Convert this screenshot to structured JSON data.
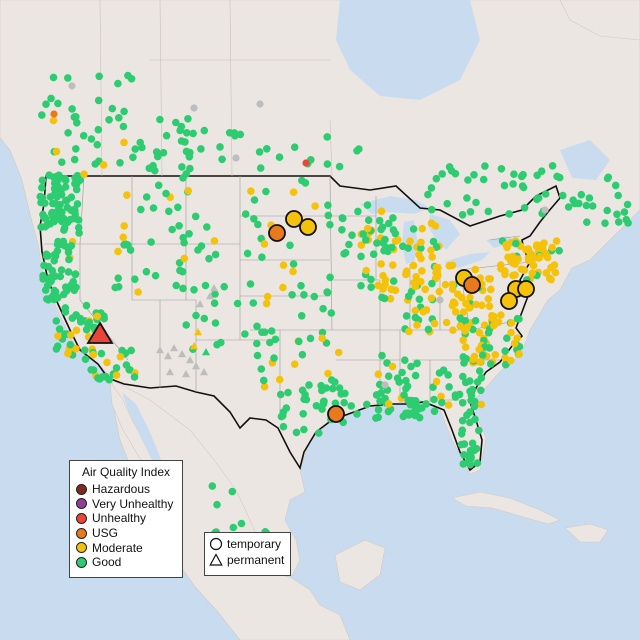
{
  "legend": {
    "title": "Air Quality Index",
    "items": [
      {
        "label": "Hazardous",
        "color": "#7e2a1f"
      },
      {
        "label": "Very Unhealthy",
        "color": "#8f3f97"
      },
      {
        "label": "Unhealthy",
        "color": "#e8463a"
      },
      {
        "label": "USG",
        "color": "#e8791c"
      },
      {
        "label": "Moderate",
        "color": "#f5c20b"
      },
      {
        "label": "Good",
        "color": "#2ecc71"
      }
    ]
  },
  "monitor_types": [
    {
      "label": "temporary",
      "shape": "circle-icon"
    },
    {
      "label": "permanent",
      "shape": "triangle-icon"
    }
  ],
  "colors": {
    "water": "#c9dcef",
    "land": "#ece6e2",
    "no_data": "#bdbdbd"
  }
}
